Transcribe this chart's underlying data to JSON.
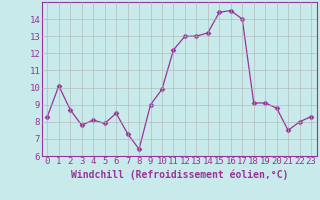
{
  "x": [
    0,
    1,
    2,
    3,
    4,
    5,
    6,
    7,
    8,
    9,
    10,
    11,
    12,
    13,
    14,
    15,
    16,
    17,
    18,
    19,
    20,
    21,
    22,
    23
  ],
  "y": [
    8.3,
    10.1,
    8.7,
    7.8,
    8.1,
    7.9,
    8.5,
    7.3,
    6.4,
    9.0,
    9.9,
    12.2,
    13.0,
    13.0,
    13.2,
    14.4,
    14.5,
    14.0,
    9.1,
    9.1,
    8.8,
    7.5,
    8.0,
    8.3
  ],
  "line_color": "#993399",
  "marker": "D",
  "marker_size": 2.5,
  "bg_color": "#c8eaea",
  "grid_color": "#b0b0b0",
  "xlabel": "Windchill (Refroidissement éolien,°C)",
  "ylabel": "",
  "ylim": [
    6,
    15
  ],
  "xlim": [
    -0.5,
    23.5
  ],
  "yticks": [
    6,
    7,
    8,
    9,
    10,
    11,
    12,
    13,
    14
  ],
  "xticks": [
    0,
    1,
    2,
    3,
    4,
    5,
    6,
    7,
    8,
    9,
    10,
    11,
    12,
    13,
    14,
    15,
    16,
    17,
    18,
    19,
    20,
    21,
    22,
    23
  ],
  "font_size": 6.5,
  "label_fontsize": 7.0,
  "bottom_bar_color": "#7b2d8b"
}
